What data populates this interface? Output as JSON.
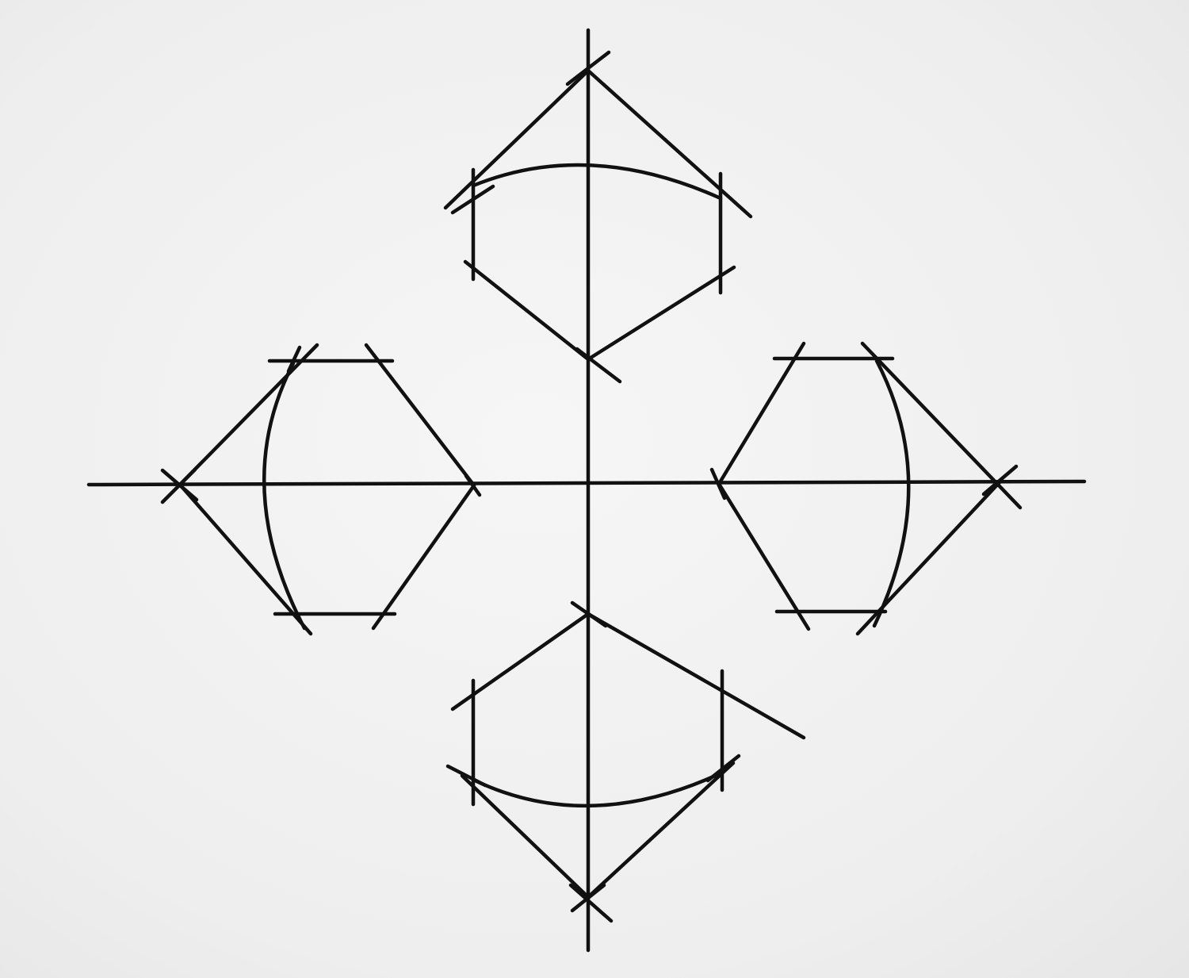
{
  "diagram": {
    "ink_color": "#111111",
    "paper_color": "#f1f1f1",
    "elements": [
      "axis-horizontal",
      "axis-vertical",
      "figure-top",
      "figure-left",
      "figure-right",
      "figure-bottom"
    ]
  }
}
